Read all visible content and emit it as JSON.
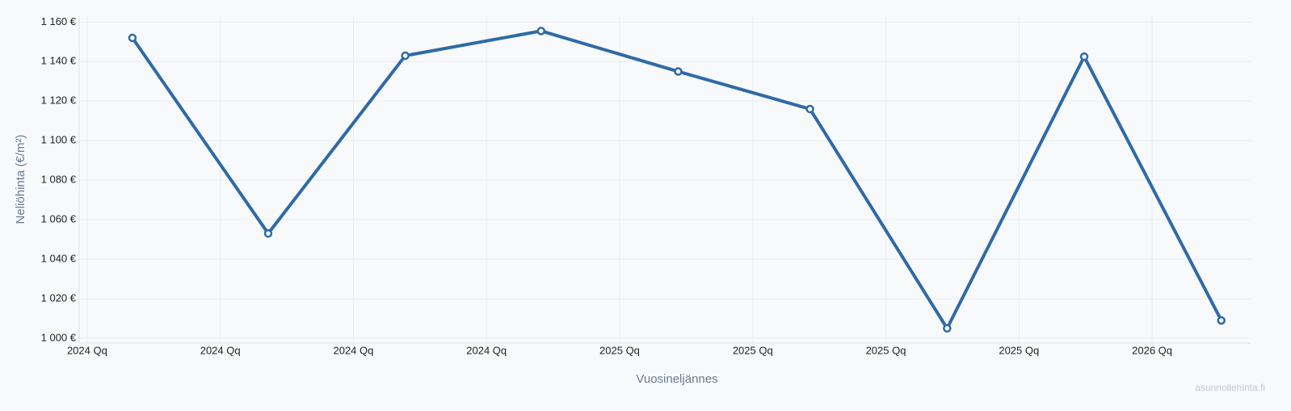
{
  "chart_data": {
    "type": "line",
    "y_label": "Neliöhinta (€/m²)",
    "x_label": "Vuosineljännes",
    "watermark": "asunnollehinta.fi",
    "x": [
      0.34,
      1.36,
      2.39,
      3.41,
      4.44,
      5.43,
      6.46,
      7.49,
      8.52
    ],
    "series": [
      {
        "color": "#2f6aa6",
        "values": [
          1152,
          1053,
          1143,
          1155.5,
          1135,
          1116,
          1005,
          1142.5,
          1009
        ]
      }
    ],
    "xlim": [
      -0.06,
      8.74
    ],
    "xticks": [
      {
        "value": 0,
        "label": "2024 Qq"
      },
      {
        "value": 1,
        "label": "2024 Qq"
      },
      {
        "value": 2,
        "label": "2024 Qq"
      },
      {
        "value": 3,
        "label": "2024 Qq"
      },
      {
        "value": 4,
        "label": "2025 Qq"
      },
      {
        "value": 5,
        "label": "2025 Qq"
      },
      {
        "value": 6,
        "label": "2025 Qq"
      },
      {
        "value": 7,
        "label": "2025 Qq"
      },
      {
        "value": 8,
        "label": "2026 Qq"
      }
    ],
    "ylim": [
      997.5,
      1163
    ],
    "yticks": [
      {
        "value": 1000,
        "label": "1 000 €"
      },
      {
        "value": 1020,
        "label": "1 020 €"
      },
      {
        "value": 1040,
        "label": "1 040 €"
      },
      {
        "value": 1060,
        "label": "1 060 €"
      },
      {
        "value": 1080,
        "label": "1 080 €"
      },
      {
        "value": 1100,
        "label": "1 100 €"
      },
      {
        "value": 1120,
        "label": "1 120 €"
      },
      {
        "value": 1140,
        "label": "1 140 €"
      },
      {
        "value": 1160,
        "label": "1 160 €"
      }
    ],
    "grid": true
  }
}
